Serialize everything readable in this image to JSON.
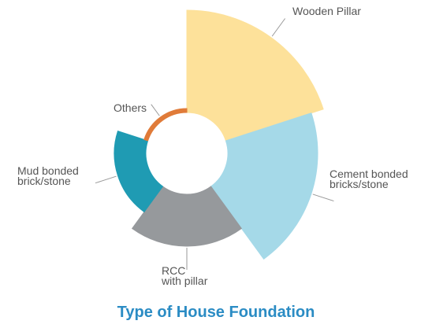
{
  "chart_data": {
    "type": "polar-area",
    "title": "Type of House Foundation",
    "categories": [
      "Wooden Pillar",
      "Cement bonded\nbricks/stone",
      "RCC\nwith pillar",
      "Mud bonded\nbrick/stone",
      "Others"
    ],
    "values": [
      130,
      114,
      66,
      40,
      5
    ],
    "colors": [
      "#fde19a",
      "#a5d9e8",
      "#96999c",
      "#1f9bb3",
      "#e07b39"
    ],
    "rlim": [
      0,
      130
    ]
  }
}
